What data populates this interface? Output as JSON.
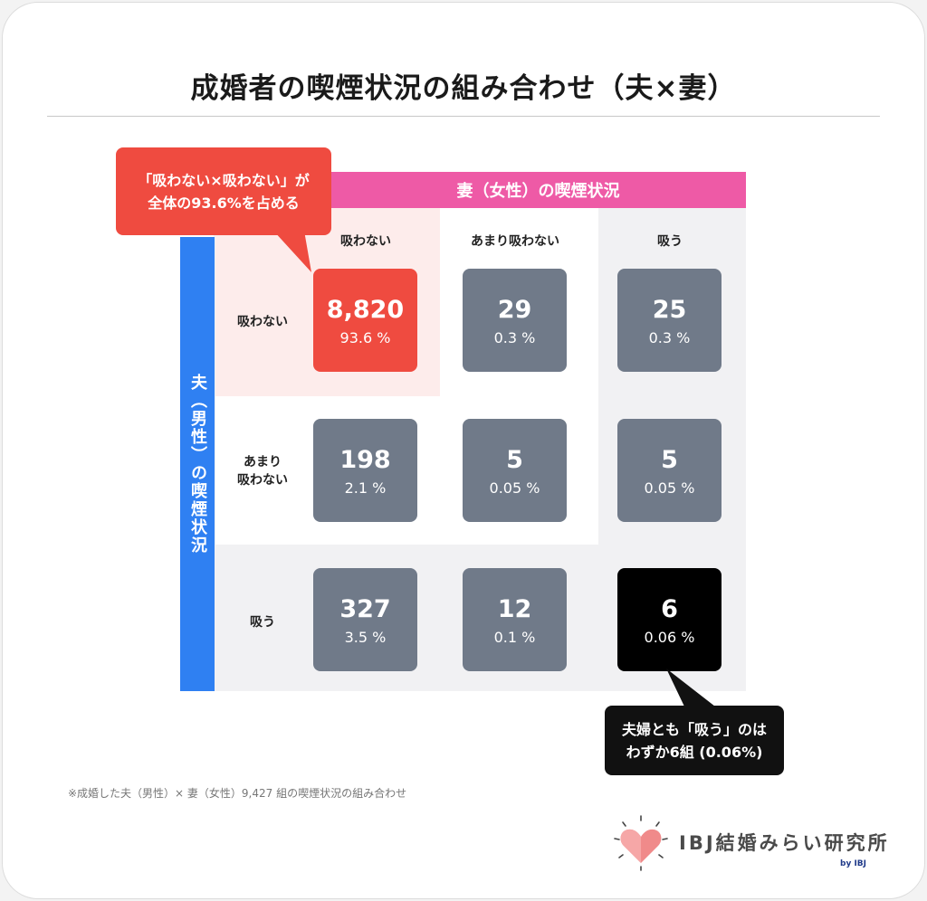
{
  "title": "成婚者の喫煙状況の組み合わせ（夫×妻）",
  "chart_data": {
    "type": "table",
    "column_header": "妻（女性）の喫煙状況",
    "row_header": "夫（男性）の喫煙状況",
    "columns": [
      "吸わない",
      "あまり吸わない",
      "吸う"
    ],
    "rows": [
      "吸わない",
      "あまり\n吸わない",
      "吸う"
    ],
    "cells": [
      [
        {
          "count": "8,820",
          "pct": "93.6 %"
        },
        {
          "count": "29",
          "pct": "0.3 %"
        },
        {
          "count": "25",
          "pct": "0.3 %"
        }
      ],
      [
        {
          "count": "198",
          "pct": "2.1 %"
        },
        {
          "count": "5",
          "pct": "0.05 %"
        },
        {
          "count": "5",
          "pct": "0.05 %"
        }
      ],
      [
        {
          "count": "327",
          "pct": "3.5 %"
        },
        {
          "count": "12",
          "pct": "0.1 %"
        },
        {
          "count": "6",
          "pct": "0.06 %"
        }
      ]
    ],
    "values": [
      [
        8820,
        29,
        25
      ],
      [
        198,
        5,
        5
      ],
      [
        327,
        12,
        6
      ]
    ],
    "percentages": [
      [
        93.6,
        0.3,
        0.3
      ],
      [
        2.1,
        0.05,
        0.05
      ],
      [
        3.5,
        0.1,
        0.06
      ]
    ]
  },
  "callouts": {
    "top": [
      "「吸わない×吸わない」が",
      "全体の93.6%を占める"
    ],
    "bottom": [
      "夫婦とも「吸う」のは",
      "わずか6組 (0.06%)"
    ]
  },
  "footnote": "※成婚した夫（男性）× 妻（女性）9,427 組の喫煙状況の組み合わせ",
  "logo": {
    "name": "IBJ結婚みらい研究所",
    "sub": "by IBJ"
  },
  "colors": {
    "wife_header": "#ee5aa6",
    "husband_header": "#2f80f2",
    "highlight_cell": "#ef4b40",
    "highlight_zone": "#fdeceb",
    "cell": "#707a89",
    "dark_cell": "#000000",
    "heart": "#f08a8a"
  }
}
